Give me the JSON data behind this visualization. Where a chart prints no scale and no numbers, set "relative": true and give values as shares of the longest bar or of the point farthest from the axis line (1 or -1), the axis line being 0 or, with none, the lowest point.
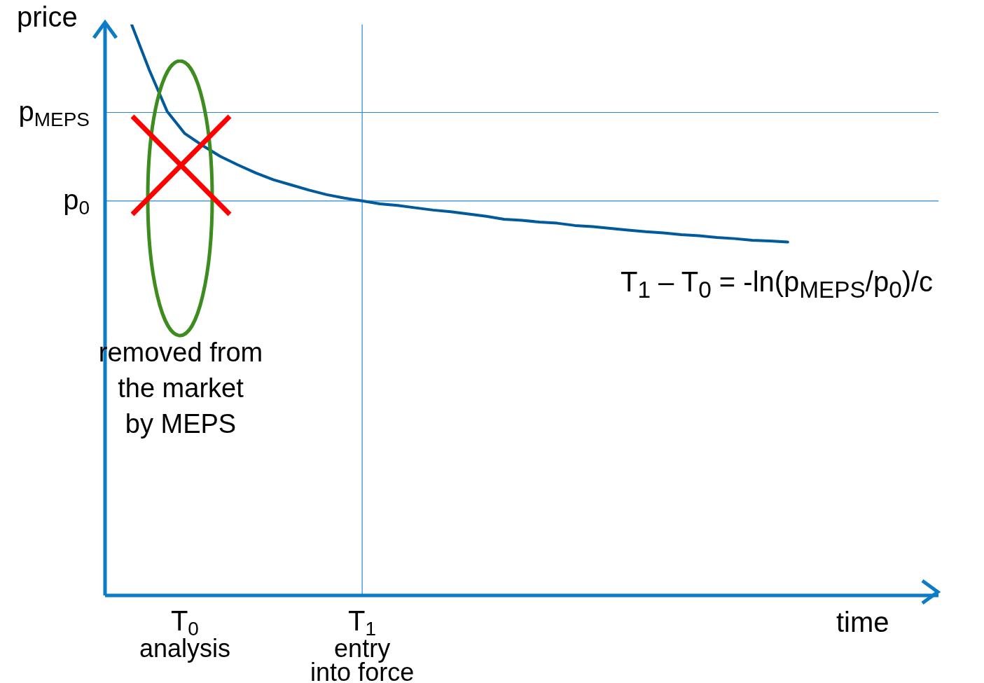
{
  "chart_data": {
    "type": "line",
    "relative": true,
    "xlabel": "time",
    "ylabel": "price",
    "categories": [
      null,
      null,
      null,
      null,
      "T$_{0}$\nanalysis",
      null,
      null,
      null,
      null,
      null,
      null,
      null,
      null,
      null,
      "T$_{1}$\nentry\ninto force",
      null,
      null,
      null,
      null,
      null,
      null,
      null,
      null,
      null,
      null,
      null,
      null,
      null,
      null,
      null,
      null,
      null,
      null,
      null,
      null,
      null,
      null,
      null,
      null,
      null,
      null,
      null,
      null,
      null,
      null,
      null,
      null
    ],
    "series": [
      {
        "color": "#005a9c",
        "values": [
          null,
          1.0,
          0.92,
          0.848,
          0.809,
          0.788,
          0.769,
          0.754,
          0.74,
          0.728,
          0.719,
          0.71,
          0.702,
          0.696,
          0.691,
          0.686,
          0.683,
          0.679,
          0.675,
          0.672,
          0.668,
          0.664,
          0.659,
          0.657,
          0.654,
          0.652,
          0.648,
          0.646,
          0.643,
          0.64,
          0.637,
          0.635,
          0.632,
          0.63,
          0.627,
          0.625,
          0.622,
          0.621,
          0.619,
          null,
          null,
          null,
          null,
          null,
          null,
          null,
          null
        ]
      }
    ],
    "ref_lines": [
      {
        "axis": "y",
        "value": 0.846,
        "label": "p$_{MEPS}$",
        "color": "#2a86d0"
      },
      {
        "axis": "y",
        "value": 0.691,
        "label": "p$_{0}$",
        "color": "#2a86d0"
      },
      {
        "axis": "x",
        "value": "T$_{1}$\nentry\ninto force",
        "color": "#2a86d0"
      }
    ],
    "annotations": [
      "T$_{1}$ – T$_{0}$ = -ln(p$_{MEPS}$/p$_{0}$)/c",
      "removed from\nthe market\nby MEPS"
    ],
    "marker": "none",
    "line_style": "solid",
    "grid": false,
    "legend": false
  }
}
